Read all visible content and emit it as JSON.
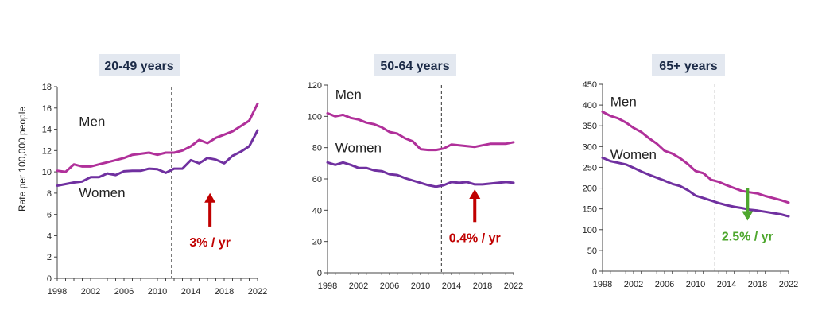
{
  "colors": {
    "men": "#b0309a",
    "women": "#7030a0",
    "up_arrow": "#c00000",
    "down_arrow": "#4ea72e"
  },
  "chart_data": [
    {
      "type": "line",
      "title": "20-49 years",
      "ylabel": "Rate per 100,000 people",
      "xlabel": "",
      "xlim": [
        1998,
        2022
      ],
      "ylim": [
        0,
        18
      ],
      "x_ticks": [
        1998,
        2002,
        2006,
        2010,
        2014,
        2018,
        2022
      ],
      "y_ticks": [
        0,
        2,
        4,
        6,
        8,
        10,
        12,
        14,
        16,
        18
      ],
      "x": [
        1998,
        1999,
        2000,
        2001,
        2002,
        2003,
        2004,
        2005,
        2006,
        2007,
        2008,
        2009,
        2010,
        2011,
        2012,
        2013,
        2014,
        2015,
        2016,
        2017,
        2018,
        2019,
        2020,
        2021,
        2022
      ],
      "series": [
        {
          "name": "Men",
          "color": "#b0309a",
          "values": [
            10.1,
            10.0,
            10.7,
            10.5,
            10.5,
            10.7,
            10.9,
            11.1,
            11.3,
            11.6,
            11.7,
            11.8,
            11.6,
            11.8,
            11.8,
            12.0,
            12.4,
            13.0,
            12.7,
            13.2,
            13.5,
            13.8,
            14.3,
            14.8,
            16.4
          ]
        },
        {
          "name": "Women",
          "color": "#7030a0",
          "values": [
            8.7,
            8.85,
            9.0,
            9.1,
            9.5,
            9.5,
            9.85,
            9.7,
            10.05,
            10.1,
            10.1,
            10.3,
            10.25,
            9.9,
            10.3,
            10.3,
            11.1,
            10.8,
            11.3,
            11.15,
            10.8,
            11.5,
            11.9,
            12.4,
            13.9
          ]
        }
      ],
      "vline_x": 2011.7,
      "annotation": {
        "text": "3% / yr",
        "direction": "up",
        "color": "#c00000",
        "x": 2016.3
      },
      "label_positions": {
        "Men": [
          2000.6,
          14.3
        ],
        "Women": [
          2000.6,
          7.6
        ]
      }
    },
    {
      "type": "line",
      "title": "50-64 years",
      "ylabel": "",
      "xlabel": "",
      "xlim": [
        1998,
        2022
      ],
      "ylim": [
        0,
        120
      ],
      "x_ticks": [
        1998,
        2002,
        2006,
        2010,
        2014,
        2018,
        2022
      ],
      "y_ticks": [
        0,
        20,
        40,
        60,
        80,
        100,
        120
      ],
      "x": [
        1998,
        1999,
        2000,
        2001,
        2002,
        2003,
        2004,
        2005,
        2006,
        2007,
        2008,
        2009,
        2010,
        2011,
        2012,
        2013,
        2014,
        2015,
        2016,
        2017,
        2018,
        2019,
        2020,
        2021,
        2022
      ],
      "series": [
        {
          "name": "Men",
          "color": "#b0309a",
          "values": [
            102,
            100,
            101,
            99,
            98,
            96,
            95,
            93,
            90,
            89,
            86,
            84,
            79,
            78.5,
            78.5,
            79.5,
            82,
            81.5,
            81,
            80.5,
            81.5,
            82.5,
            82.5,
            82.5,
            83.5
          ]
        },
        {
          "name": "Women",
          "color": "#7030a0",
          "values": [
            70.5,
            69,
            70.5,
            69,
            67,
            67,
            65.5,
            65,
            63,
            62.5,
            60.5,
            59,
            57.5,
            56,
            55,
            56,
            58,
            57.5,
            58,
            56.5,
            56.5,
            57,
            57.5,
            58,
            57.5
          ]
        }
      ],
      "vline_x": 2012.7,
      "annotation": {
        "text": "0.4% / yr",
        "direction": "up",
        "color": "#c00000",
        "x": 2017.0
      },
      "label_positions": {
        "Men": [
          1999.0,
          111
        ],
        "Women": [
          1999.0,
          77
        ]
      }
    },
    {
      "type": "line",
      "title": "65+ years",
      "ylabel": "",
      "xlabel": "",
      "xlim": [
        1998,
        2022
      ],
      "ylim": [
        0,
        450
      ],
      "x_ticks": [
        1998,
        2002,
        2006,
        2010,
        2014,
        2018,
        2022
      ],
      "y_ticks": [
        0,
        50,
        100,
        150,
        200,
        250,
        300,
        350,
        400,
        450
      ],
      "x": [
        1998,
        1999,
        2000,
        2001,
        2002,
        2003,
        2004,
        2005,
        2006,
        2007,
        2008,
        2009,
        2010,
        2011,
        2012,
        2013,
        2014,
        2015,
        2016,
        2017,
        2018,
        2019,
        2020,
        2021,
        2022
      ],
      "series": [
        {
          "name": "Men",
          "color": "#b0309a",
          "values": [
            384,
            374,
            368,
            358,
            345,
            335,
            320,
            307,
            290,
            283,
            272,
            258,
            241,
            236,
            220,
            215,
            207,
            200,
            193,
            190,
            187,
            181,
            176,
            171,
            165
          ]
        },
        {
          "name": "Women",
          "color": "#7030a0",
          "values": [
            273,
            265,
            261,
            257,
            249,
            240,
            232,
            225,
            218,
            210,
            205,
            195,
            182,
            176,
            170,
            164,
            159,
            155,
            152,
            148,
            146,
            143,
            140,
            137,
            132
          ]
        }
      ],
      "vline_x": 2012.5,
      "annotation": {
        "text": "2.5% / yr",
        "direction": "down",
        "color": "#4ea72e",
        "x": 2016.7
      },
      "label_positions": {
        "Men": [
          1999.0,
          397
        ],
        "Women": [
          1999.0,
          270
        ]
      }
    }
  ]
}
